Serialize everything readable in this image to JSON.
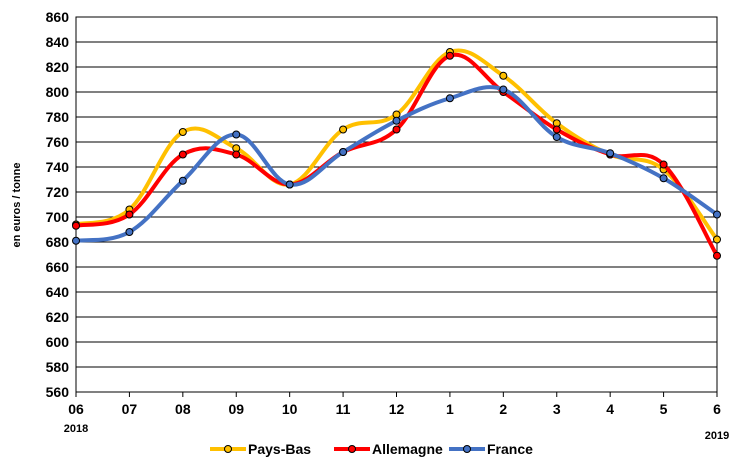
{
  "chart_data": {
    "type": "line",
    "ylabel": "en euros / tonne",
    "categories": [
      "06",
      "07",
      "08",
      "09",
      "10",
      "11",
      "12",
      "1",
      "2",
      "3",
      "4",
      "5",
      "6"
    ],
    "year_labels": {
      "start": "2018",
      "end": "2019"
    },
    "ylim": [
      560,
      860
    ],
    "yticks": [
      560,
      580,
      600,
      620,
      640,
      660,
      680,
      700,
      720,
      740,
      760,
      780,
      800,
      820,
      840,
      860
    ],
    "grid": true,
    "legend_position": "bottom",
    "series": [
      {
        "name": "Pays-Bas",
        "color": "#FFC000",
        "values": [
          694,
          706,
          768,
          755,
          726,
          770,
          782,
          832,
          813,
          775,
          750,
          738,
          682
        ]
      },
      {
        "name": "Allemagne",
        "color": "#FF0000",
        "values": [
          693,
          702,
          750,
          750,
          726,
          752,
          770,
          829,
          800,
          770,
          750,
          742,
          669
        ]
      },
      {
        "name": "France",
        "color": "#4472C4",
        "values": [
          681,
          688,
          729,
          766,
          726,
          752,
          777,
          795,
          802,
          764,
          751,
          731,
          702
        ]
      }
    ]
  }
}
